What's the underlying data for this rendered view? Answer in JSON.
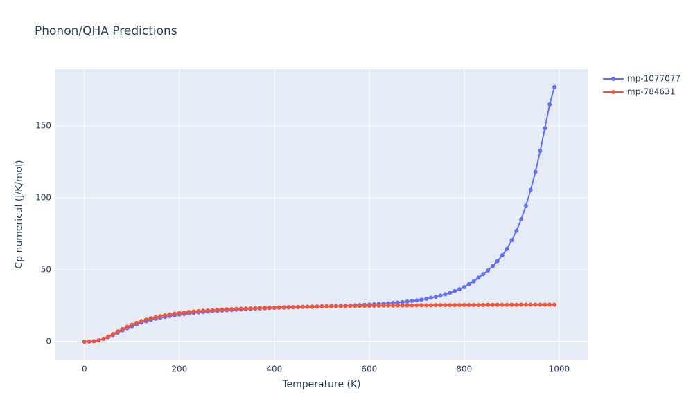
{
  "chart_data": {
    "type": "line",
    "title": "Phonon/QHA Predictions",
    "x_label": "Temperature (K)",
    "y_label": "Cp numerical (J/K/mol)",
    "x": [
      0,
      10,
      20,
      30,
      40,
      50,
      60,
      70,
      80,
      90,
      100,
      110,
      120,
      130,
      140,
      150,
      160,
      170,
      180,
      190,
      200,
      210,
      220,
      230,
      240,
      250,
      260,
      270,
      280,
      290,
      300,
      310,
      320,
      330,
      340,
      350,
      360,
      370,
      380,
      390,
      400,
      410,
      420,
      430,
      440,
      450,
      460,
      470,
      480,
      490,
      500,
      510,
      520,
      530,
      540,
      550,
      560,
      570,
      580,
      590,
      600,
      610,
      620,
      630,
      640,
      650,
      660,
      670,
      680,
      690,
      700,
      710,
      720,
      730,
      740,
      750,
      760,
      770,
      780,
      790,
      800,
      810,
      820,
      830,
      840,
      850,
      860,
      870,
      880,
      890,
      900,
      910,
      920,
      930,
      940,
      950,
      960,
      970,
      980,
      990
    ],
    "series": [
      {
        "name": "mp-1077077",
        "color": "#636efa",
        "values": [
          0,
          0.05,
          0.25,
          0.8,
          1.8,
          3.1,
          4.6,
          6.2,
          7.8,
          9.3,
          10.7,
          12.0,
          13.2,
          14.2,
          15.1,
          15.9,
          16.6,
          17.2,
          17.8,
          18.3,
          18.8,
          19.2,
          19.6,
          20.0,
          20.3,
          20.6,
          20.9,
          21.2,
          21.4,
          21.6,
          21.8,
          22.0,
          22.2,
          22.4,
          22.6,
          22.8,
          22.9,
          23.1,
          23.2,
          23.4,
          23.5,
          23.6,
          23.7,
          23.8,
          23.9,
          24.0,
          24.1,
          24.2,
          24.3,
          24.4,
          24.5,
          24.6,
          24.7,
          24.8,
          24.9,
          25.0,
          25.1,
          25.3,
          25.4,
          25.6,
          25.8,
          26.0,
          26.2,
          26.4,
          26.6,
          26.9,
          27.2,
          27.5,
          27.9,
          28.3,
          28.7,
          29.2,
          29.8,
          30.5,
          31.2,
          32.0,
          33.0,
          34.0,
          35.2,
          36.5,
          38.0,
          40.0,
          42.0,
          44.5,
          47.0,
          49.5,
          52.5,
          56.0,
          60.0,
          64.5,
          70.5,
          77.0,
          85.0,
          94.5,
          105.5,
          118.0,
          132.5,
          148.5,
          165.0,
          177.0
        ]
      },
      {
        "name": "mp-784631",
        "color": "#ef553b",
        "values": [
          0,
          0.05,
          0.3,
          0.9,
          2.0,
          3.5,
          5.2,
          7.0,
          8.7,
          10.3,
          11.8,
          13.1,
          14.3,
          15.3,
          16.2,
          17.0,
          17.7,
          18.3,
          18.9,
          19.4,
          19.8,
          20.2,
          20.6,
          20.9,
          21.2,
          21.5,
          21.7,
          21.9,
          22.1,
          22.3,
          22.5,
          22.6,
          22.8,
          22.9,
          23.0,
          23.1,
          23.3,
          23.4,
          23.5,
          23.6,
          23.7,
          23.8,
          23.9,
          24.0,
          24.0,
          24.1,
          24.2,
          24.3,
          24.3,
          24.4,
          24.5,
          24.5,
          24.6,
          24.6,
          24.7,
          24.7,
          24.8,
          24.8,
          24.9,
          24.9,
          25.0,
          25.0,
          25.0,
          25.1,
          25.1,
          25.1,
          25.2,
          25.2,
          25.2,
          25.2,
          25.3,
          25.3,
          25.3,
          25.3,
          25.4,
          25.4,
          25.4,
          25.4,
          25.4,
          25.5,
          25.5,
          25.5,
          25.5,
          25.5,
          25.5,
          25.6,
          25.6,
          25.6,
          25.6,
          25.6,
          25.6,
          25.6,
          25.7,
          25.7,
          25.7,
          25.7,
          25.7,
          25.7,
          25.7,
          25.7
        ]
      }
    ],
    "xlim": [
      -61,
      1060
    ],
    "ylim": [
      -12.5,
      189.4
    ],
    "xticks": [
      0,
      200,
      400,
      600,
      800,
      1000
    ],
    "yticks": [
      0,
      50,
      100,
      150
    ],
    "grid": true,
    "legend": "right",
    "background": "#e5ecf6"
  }
}
